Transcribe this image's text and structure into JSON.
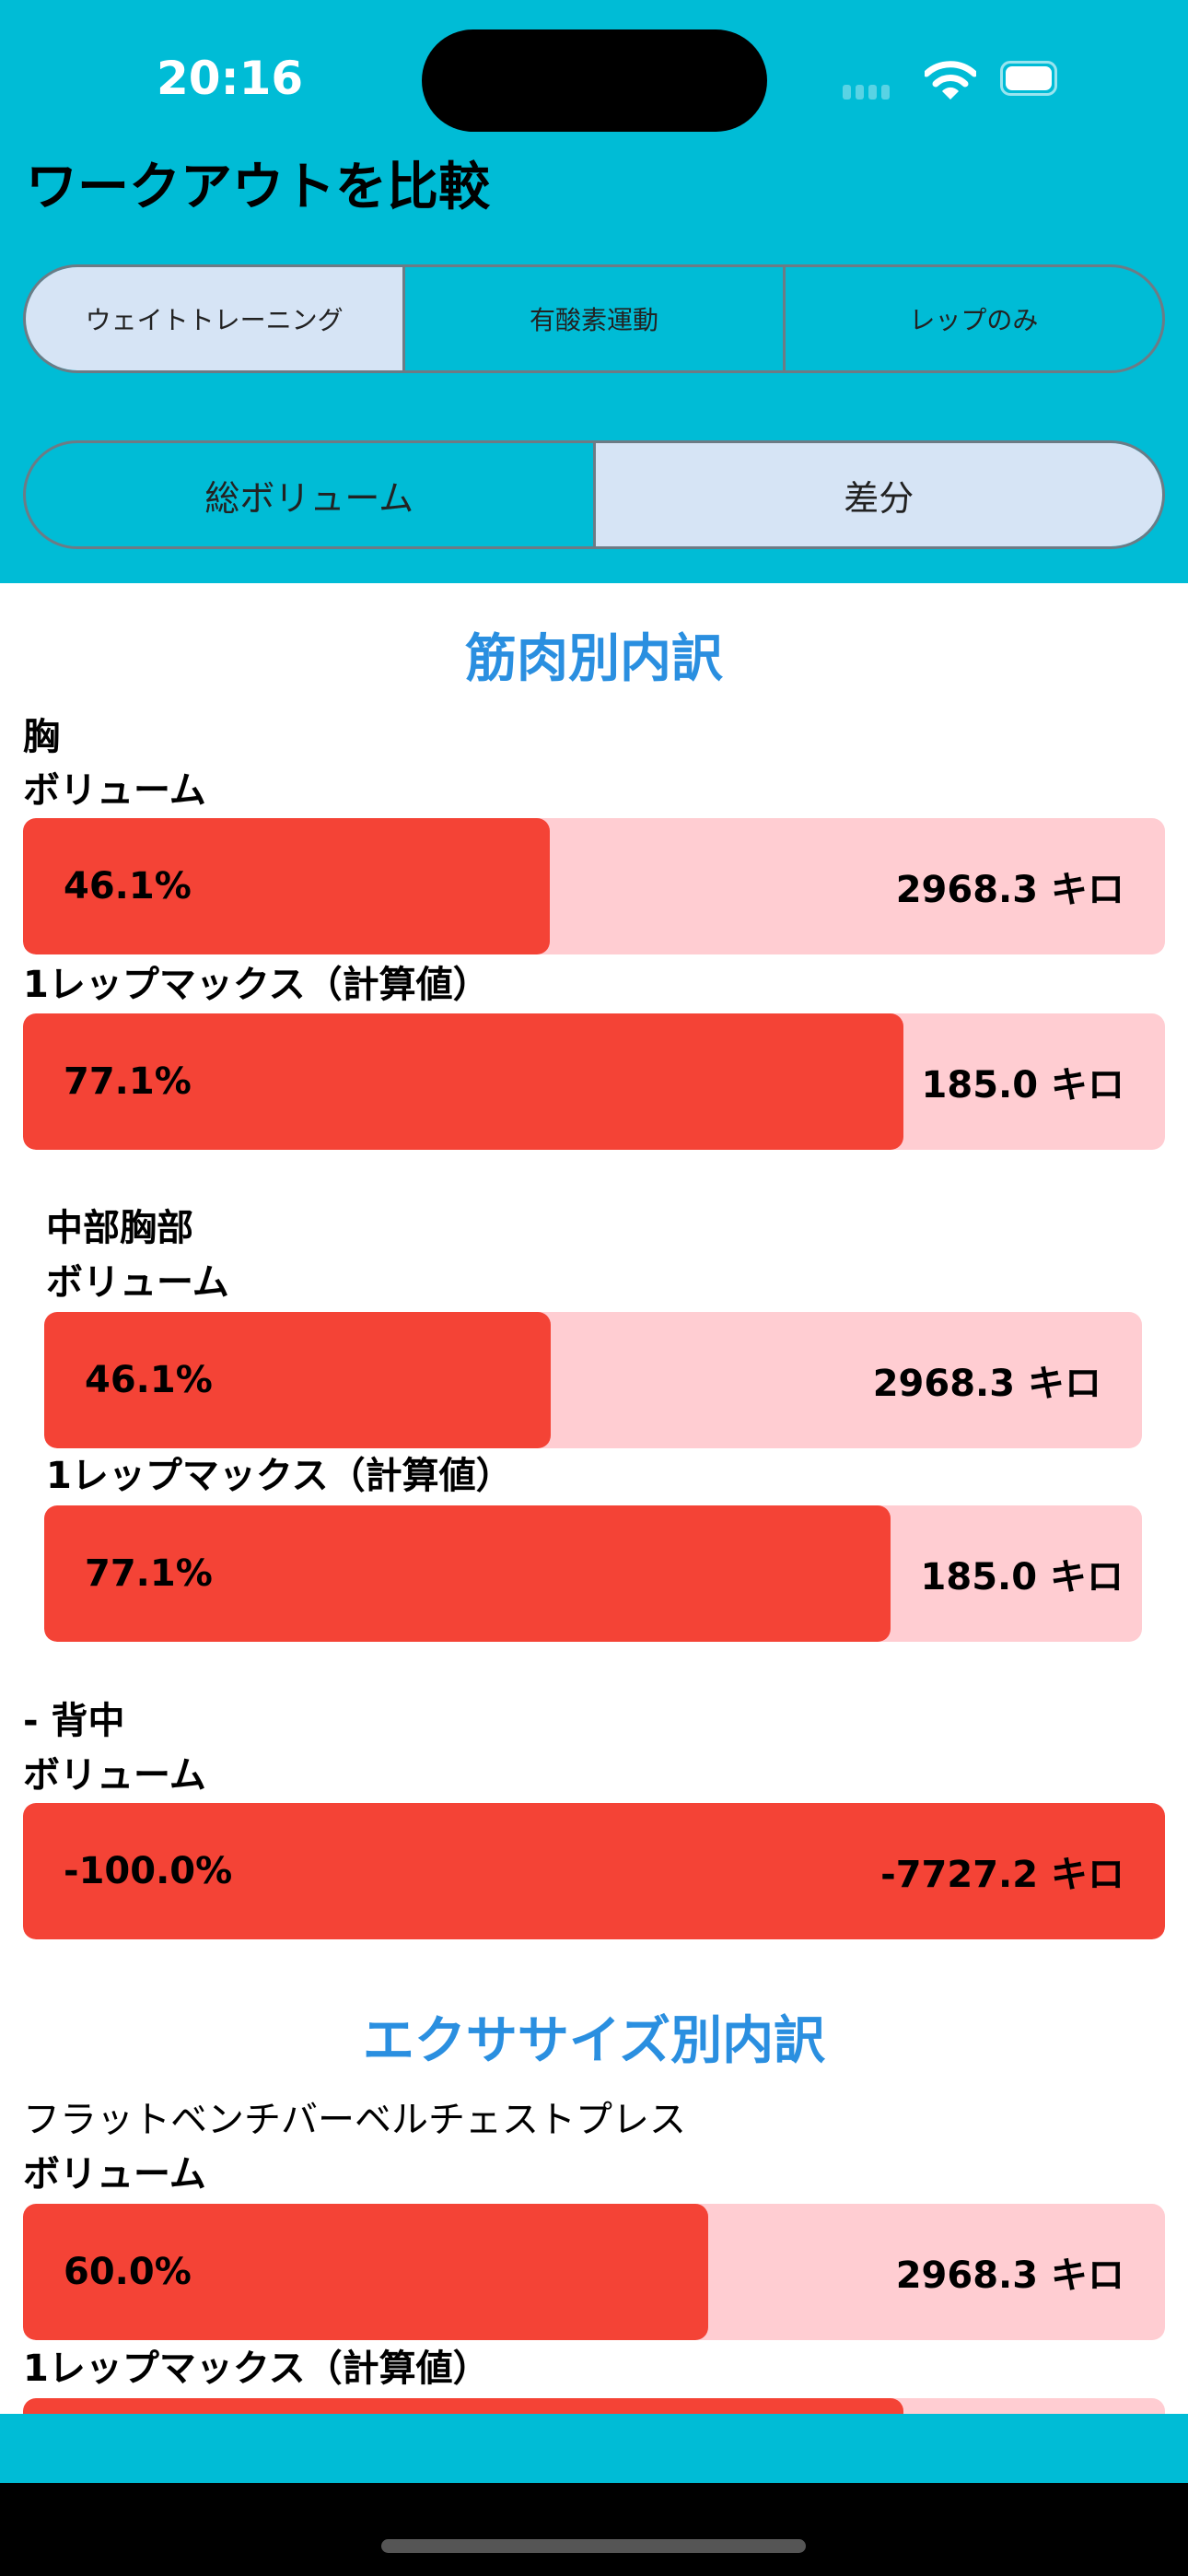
{
  "status": {
    "time": "20:16"
  },
  "header": {
    "title": "ワークアウトを比較",
    "type_tabs": [
      "ウェイトトレーニング",
      "有酸素運動",
      "レップのみ"
    ],
    "type_selected": 0,
    "mode_tabs": [
      "総ボリューム",
      "差分"
    ],
    "mode_selected": 1
  },
  "colors": {
    "accent": "#00BCD6",
    "selected_segment": "#D6E4F5",
    "bar_fill": "#F44336",
    "bar_track": "#FFCDD2",
    "section_title": "#2A8FE0"
  },
  "muscle_section": {
    "title": "筋肉別内訳",
    "groups": [
      {
        "name": "胸",
        "volume_label": "ボリューム",
        "volume_pct": "46.1%",
        "volume_fill": 46.1,
        "volume_value": "2968.3 キロ",
        "orm_label": "1レップマックス（計算値）",
        "orm_pct": "77.1%",
        "orm_fill": 77.1,
        "orm_value": "185.0 キロ"
      },
      {
        "name": "中部胸部",
        "volume_label": "ボリューム",
        "volume_pct": "46.1%",
        "volume_fill": 46.1,
        "volume_value": "2968.3 キロ",
        "orm_label": "1レップマックス（計算値）",
        "orm_pct": "77.1%",
        "orm_fill": 77.1,
        "orm_value": "185.0 キロ"
      },
      {
        "name": "- 背中",
        "volume_label": "ボリューム",
        "volume_pct": "-100.0%",
        "volume_fill": 100,
        "volume_value": "-7727.2 キロ"
      }
    ]
  },
  "exercise_section": {
    "title": "エクササイズ別内訳",
    "items": [
      {
        "name": "フラットベンチバーベルチェストプレス",
        "volume_label": "ボリューム",
        "volume_pct": "60.0%",
        "volume_fill": 60.0,
        "volume_value": "2968.3 キロ",
        "orm_label": "1レップマックス（計算値）",
        "orm_fill": 77.1
      }
    ]
  }
}
